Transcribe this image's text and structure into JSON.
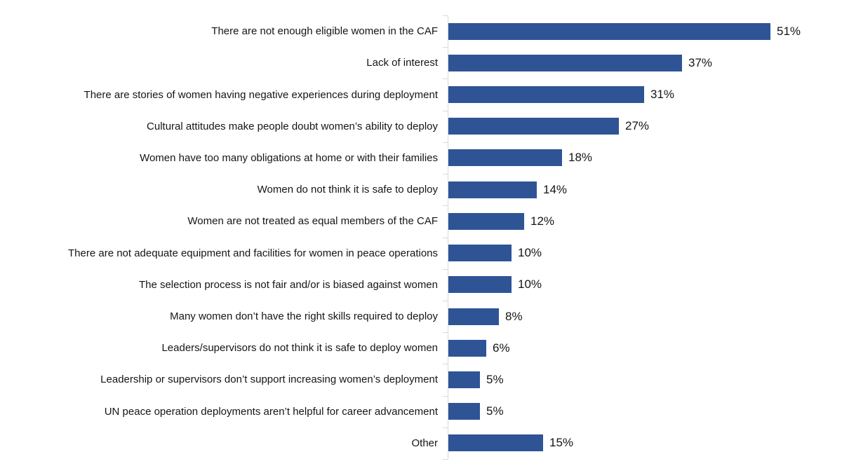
{
  "chart_data": {
    "type": "bar",
    "orientation": "horizontal",
    "title": "",
    "xlabel": "",
    "ylabel": "",
    "grid": false,
    "legend": false,
    "xlim": [
      0,
      61
    ],
    "bar_color": "#2F5496",
    "axis_color": "#D9D9D9",
    "text_color": "#151515",
    "categories": [
      "There are not enough eligible women in the CAF",
      "Lack of interest",
      "There are stories of women having negative experiences during deployment",
      "Cultural attitudes make people doubt women’s ability to deploy",
      "Women have too many obligations at home or with their families",
      "Women do not think it is safe to deploy",
      "Women are not treated as equal members of the CAF",
      "There are not adequate equipment and facilities for women in peace operations",
      "The selection process is not fair and/or is biased against women",
      "Many women don’t have the right skills required to deploy",
      "Leaders/supervisors do not think it is safe to deploy women",
      "Leadership or supervisors don’t support increasing women’s deployment",
      "UN peace operation deployments aren’t helpful for career advancement",
      "Other"
    ],
    "values": [
      51,
      37,
      31,
      27,
      18,
      14,
      12,
      10,
      10,
      8,
      6,
      5,
      5,
      15
    ],
    "value_labels": [
      "51%",
      "37%",
      "31%",
      "27%",
      "18%",
      "14%",
      "12%",
      "10%",
      "10%",
      "8%",
      "6%",
      "5%",
      "5%",
      "15%"
    ]
  }
}
